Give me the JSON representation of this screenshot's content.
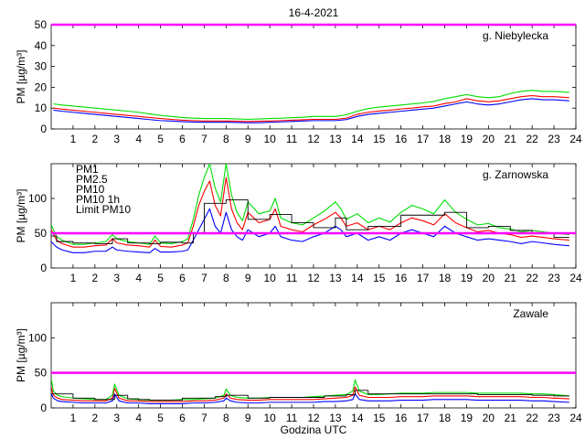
{
  "figure": {
    "title": "16-4-2021",
    "xlabel": "Godzina UTC"
  },
  "legend": [
    {
      "label": "PM1",
      "color": "#0000ff"
    },
    {
      "label": "PM2.5",
      "color": "#ff0000"
    },
    {
      "label": "PM10",
      "color": "#00dd00"
    },
    {
      "label": "PM10 1h",
      "color": "#000000"
    },
    {
      "label": "Limit PM10",
      "color": "#ff00ff"
    }
  ],
  "chart_data": [
    {
      "type": "line",
      "station": "g. Niebylecka",
      "xlim": [
        0,
        24
      ],
      "ylim": [
        0,
        50
      ],
      "yticks": [
        0,
        10,
        20,
        30,
        40,
        50
      ],
      "xticks": [
        1,
        2,
        3,
        4,
        5,
        6,
        7,
        8,
        9,
        10,
        11,
        12,
        13,
        14,
        15,
        16,
        17,
        18,
        19,
        20,
        21,
        22,
        23,
        24
      ],
      "ylabel": "PM [µg/m³]",
      "limit": 50,
      "x": [
        0.1,
        0.5,
        1,
        1.5,
        2,
        2.5,
        3,
        3.5,
        4,
        4.5,
        5,
        5.5,
        6,
        6.5,
        7,
        7.5,
        8,
        8.5,
        9,
        9.5,
        10,
        10.5,
        11,
        11.5,
        12,
        12.5,
        13,
        13.5,
        14,
        14.5,
        15,
        15.5,
        16,
        16.5,
        17,
        17.5,
        18,
        18.5,
        19,
        19.5,
        20,
        20.5,
        21,
        21.5,
        22,
        22.5,
        23,
        23.7
      ],
      "series": [
        {
          "name": "PM1",
          "values": [
            9,
            8.5,
            8,
            7.5,
            7,
            6.5,
            6,
            5.5,
            5,
            4.5,
            4,
            3.8,
            3.5,
            3.3,
            3.2,
            3.2,
            3.2,
            3.1,
            3,
            3,
            3.2,
            3.4,
            3.6,
            3.8,
            4,
            4,
            4,
            4.5,
            6,
            7,
            7.5,
            8,
            8.5,
            9,
            9.5,
            10,
            11,
            12,
            13,
            12,
            11.5,
            12,
            13,
            14,
            14.5,
            14,
            14,
            13.5
          ]
        },
        {
          "name": "PM2.5",
          "values": [
            10,
            9.5,
            9,
            8.5,
            8,
            7.5,
            7,
            6.5,
            6,
            5.5,
            5,
            4.6,
            4.2,
            4,
            3.8,
            3.8,
            3.8,
            3.7,
            3.6,
            3.7,
            3.8,
            4,
            4.2,
            4.4,
            4.6,
            4.6,
            4.6,
            5.2,
            7,
            8,
            8.6,
            9,
            9.6,
            10,
            10.6,
            11,
            12.2,
            13,
            14.5,
            13.5,
            13,
            13.5,
            14.5,
            15.5,
            16,
            15.5,
            15.5,
            15
          ]
        },
        {
          "name": "PM10",
          "values": [
            12,
            11.5,
            11,
            10.5,
            10,
            9.5,
            9,
            8.5,
            8,
            7.2,
            6.5,
            6,
            5.5,
            5.2,
            5,
            5,
            5,
            4.8,
            4.6,
            4.8,
            5,
            5.2,
            5.4,
            5.6,
            6,
            6,
            6,
            6.8,
            8.5,
            9.8,
            10.5,
            11,
            11.5,
            12,
            12.5,
            13.2,
            14.5,
            15.5,
            16.5,
            15.5,
            15,
            15.5,
            17,
            18,
            18.5,
            18,
            18,
            17.5
          ]
        }
      ]
    },
    {
      "type": "line",
      "station": "g. Zarnowska",
      "xlim": [
        0,
        24
      ],
      "ylim": [
        0,
        150
      ],
      "yticks": [
        0,
        50,
        100
      ],
      "xticks": [
        1,
        2,
        3,
        4,
        5,
        6,
        7,
        8,
        9,
        10,
        11,
        12,
        13,
        14,
        15,
        16,
        17,
        18,
        19,
        20,
        21,
        22,
        23,
        24
      ],
      "ylabel": "PM [µg/m³]",
      "limit": 50,
      "x": [
        0,
        0.25,
        0.5,
        1,
        1.5,
        2,
        2.5,
        2.8,
        3,
        3.5,
        4,
        4.5,
        4.75,
        5,
        5.5,
        6,
        6.25,
        6.5,
        6.75,
        7,
        7.25,
        7.5,
        7.75,
        8,
        8.25,
        8.5,
        8.75,
        9,
        9.5,
        10,
        10.25,
        10.5,
        11,
        11.5,
        12,
        12.5,
        13,
        13.25,
        13.5,
        14,
        14.5,
        15,
        15.5,
        16,
        16.5,
        17,
        17.5,
        18,
        18.5,
        19,
        19.5,
        20,
        20.5,
        21,
        21.5,
        22,
        22.5,
        23,
        23.7
      ],
      "series": [
        {
          "name": "PM1",
          "values": [
            38,
            30,
            26,
            22,
            22,
            24,
            24,
            30,
            26,
            24,
            23,
            22,
            28,
            23,
            23,
            24,
            26,
            40,
            55,
            70,
            85,
            60,
            50,
            80,
            55,
            45,
            40,
            55,
            45,
            50,
            60,
            45,
            40,
            38,
            45,
            50,
            60,
            55,
            45,
            50,
            40,
            45,
            40,
            50,
            55,
            50,
            45,
            60,
            50,
            45,
            40,
            42,
            40,
            38,
            35,
            38,
            36,
            34,
            32
          ]
        },
        {
          "name": "PM2.5",
          "values": [
            55,
            40,
            35,
            30,
            30,
            32,
            33,
            42,
            36,
            33,
            32,
            30,
            40,
            31,
            30,
            33,
            36,
            60,
            90,
            110,
            125,
            90,
            75,
            130,
            85,
            65,
            55,
            80,
            65,
            70,
            85,
            60,
            55,
            52,
            62,
            70,
            80,
            72,
            60,
            65,
            55,
            60,
            55,
            65,
            72,
            68,
            62,
            78,
            65,
            58,
            52,
            54,
            50,
            48,
            44,
            46,
            44,
            42,
            40
          ]
        },
        {
          "name": "PM10",
          "values": [
            62,
            45,
            40,
            34,
            34,
            36,
            38,
            48,
            42,
            38,
            36,
            34,
            46,
            36,
            35,
            38,
            42,
            70,
            105,
            130,
            150,
            115,
            95,
            150,
            105,
            80,
            68,
            95,
            78,
            82,
            100,
            72,
            65,
            62,
            72,
            82,
            95,
            85,
            70,
            78,
            65,
            72,
            66,
            80,
            90,
            85,
            78,
            98,
            80,
            70,
            62,
            64,
            58,
            56,
            52,
            54,
            52,
            50,
            48
          ]
        },
        {
          "name": "PM10 1h",
          "step": true,
          "values": [
            46,
            38,
            38,
            36,
            36,
            35,
            35,
            42,
            42,
            36,
            36,
            35,
            35,
            37,
            37,
            36,
            36,
            50,
            50,
            93,
            93,
            93,
            93,
            98,
            98,
            98,
            98,
            70,
            70,
            77,
            77,
            77,
            65,
            65,
            58,
            58,
            72,
            72,
            55,
            55,
            60,
            60,
            60,
            76,
            76,
            76,
            76,
            80,
            80,
            58,
            58,
            60,
            60,
            54,
            54,
            50,
            50,
            44,
            44
          ]
        }
      ]
    },
    {
      "type": "line",
      "station": "Zawale",
      "xlim": [
        0,
        24
      ],
      "ylim": [
        0,
        150
      ],
      "yticks": [
        0,
        50,
        100
      ],
      "xticks": [
        1,
        2,
        3,
        4,
        5,
        6,
        7,
        8,
        9,
        10,
        11,
        12,
        13,
        14,
        15,
        16,
        17,
        18,
        19,
        20,
        21,
        22,
        23,
        24
      ],
      "ylabel": "PM [µg/m³]",
      "limit": 50,
      "x": [
        0,
        0.1,
        0.3,
        0.5,
        1,
        1.5,
        2,
        2.5,
        2.8,
        2.9,
        3.1,
        3.5,
        4,
        4.5,
        5,
        5.5,
        6,
        6.5,
        7,
        7.5,
        7.9,
        8,
        8.2,
        8.5,
        9,
        9.5,
        10,
        10.5,
        11,
        11.5,
        12,
        12.5,
        13,
        13.5,
        13.8,
        13.9,
        14.1,
        14.5,
        15,
        15.5,
        16,
        16.5,
        17,
        17.5,
        18,
        18.5,
        19,
        19.5,
        20,
        20.5,
        21,
        21.5,
        22,
        22.5,
        23,
        23.7
      ],
      "series": [
        {
          "name": "PM1",
          "values": [
            20,
            14,
            10,
            9,
            8,
            7,
            7,
            7,
            10,
            20,
            10,
            7,
            7,
            6,
            6,
            6,
            6,
            7,
            7,
            8,
            10,
            14,
            10,
            8,
            7,
            7,
            8,
            8,
            8,
            8,
            8,
            9,
            9,
            10,
            12,
            20,
            12,
            10,
            10,
            10,
            11,
            11,
            11,
            12,
            12,
            12,
            12,
            11,
            11,
            11,
            11,
            11,
            10,
            10,
            9,
            8
          ]
        },
        {
          "name": "PM2.5",
          "values": [
            30,
            18,
            14,
            12,
            11,
            10,
            10,
            10,
            14,
            28,
            14,
            10,
            10,
            9,
            9,
            9,
            9,
            10,
            10,
            11,
            14,
            20,
            14,
            12,
            11,
            11,
            12,
            12,
            12,
            12,
            12,
            13,
            14,
            15,
            18,
            30,
            18,
            15,
            15,
            15,
            16,
            16,
            16,
            17,
            17,
            17,
            17,
            16,
            16,
            16,
            16,
            16,
            15,
            15,
            14,
            13
          ]
        },
        {
          "name": "PM10",
          "values": [
            42,
            24,
            18,
            16,
            14,
            13,
            12,
            12,
            18,
            34,
            18,
            13,
            12,
            11,
            11,
            11,
            12,
            12,
            13,
            14,
            18,
            27,
            18,
            15,
            14,
            14,
            15,
            15,
            15,
            15,
            16,
            17,
            18,
            19,
            24,
            40,
            24,
            19,
            19,
            20,
            21,
            21,
            21,
            22,
            22,
            22,
            22,
            21,
            21,
            21,
            21,
            21,
            20,
            20,
            19,
            17
          ]
        },
        {
          "name": "PM10 1h",
          "step": true,
          "values": [
            20,
            20,
            20,
            20,
            14,
            14,
            12,
            12,
            12,
            18,
            18,
            13,
            12,
            11,
            11,
            11,
            14,
            14,
            14,
            16,
            16,
            18,
            18,
            18,
            14,
            14,
            15,
            15,
            15,
            15,
            15,
            17,
            17,
            19,
            19,
            25,
            25,
            20,
            20,
            20,
            20,
            20,
            20,
            20,
            20,
            20,
            20,
            19,
            19,
            19,
            19,
            19,
            18,
            18,
            17,
            17
          ]
        }
      ]
    }
  ]
}
